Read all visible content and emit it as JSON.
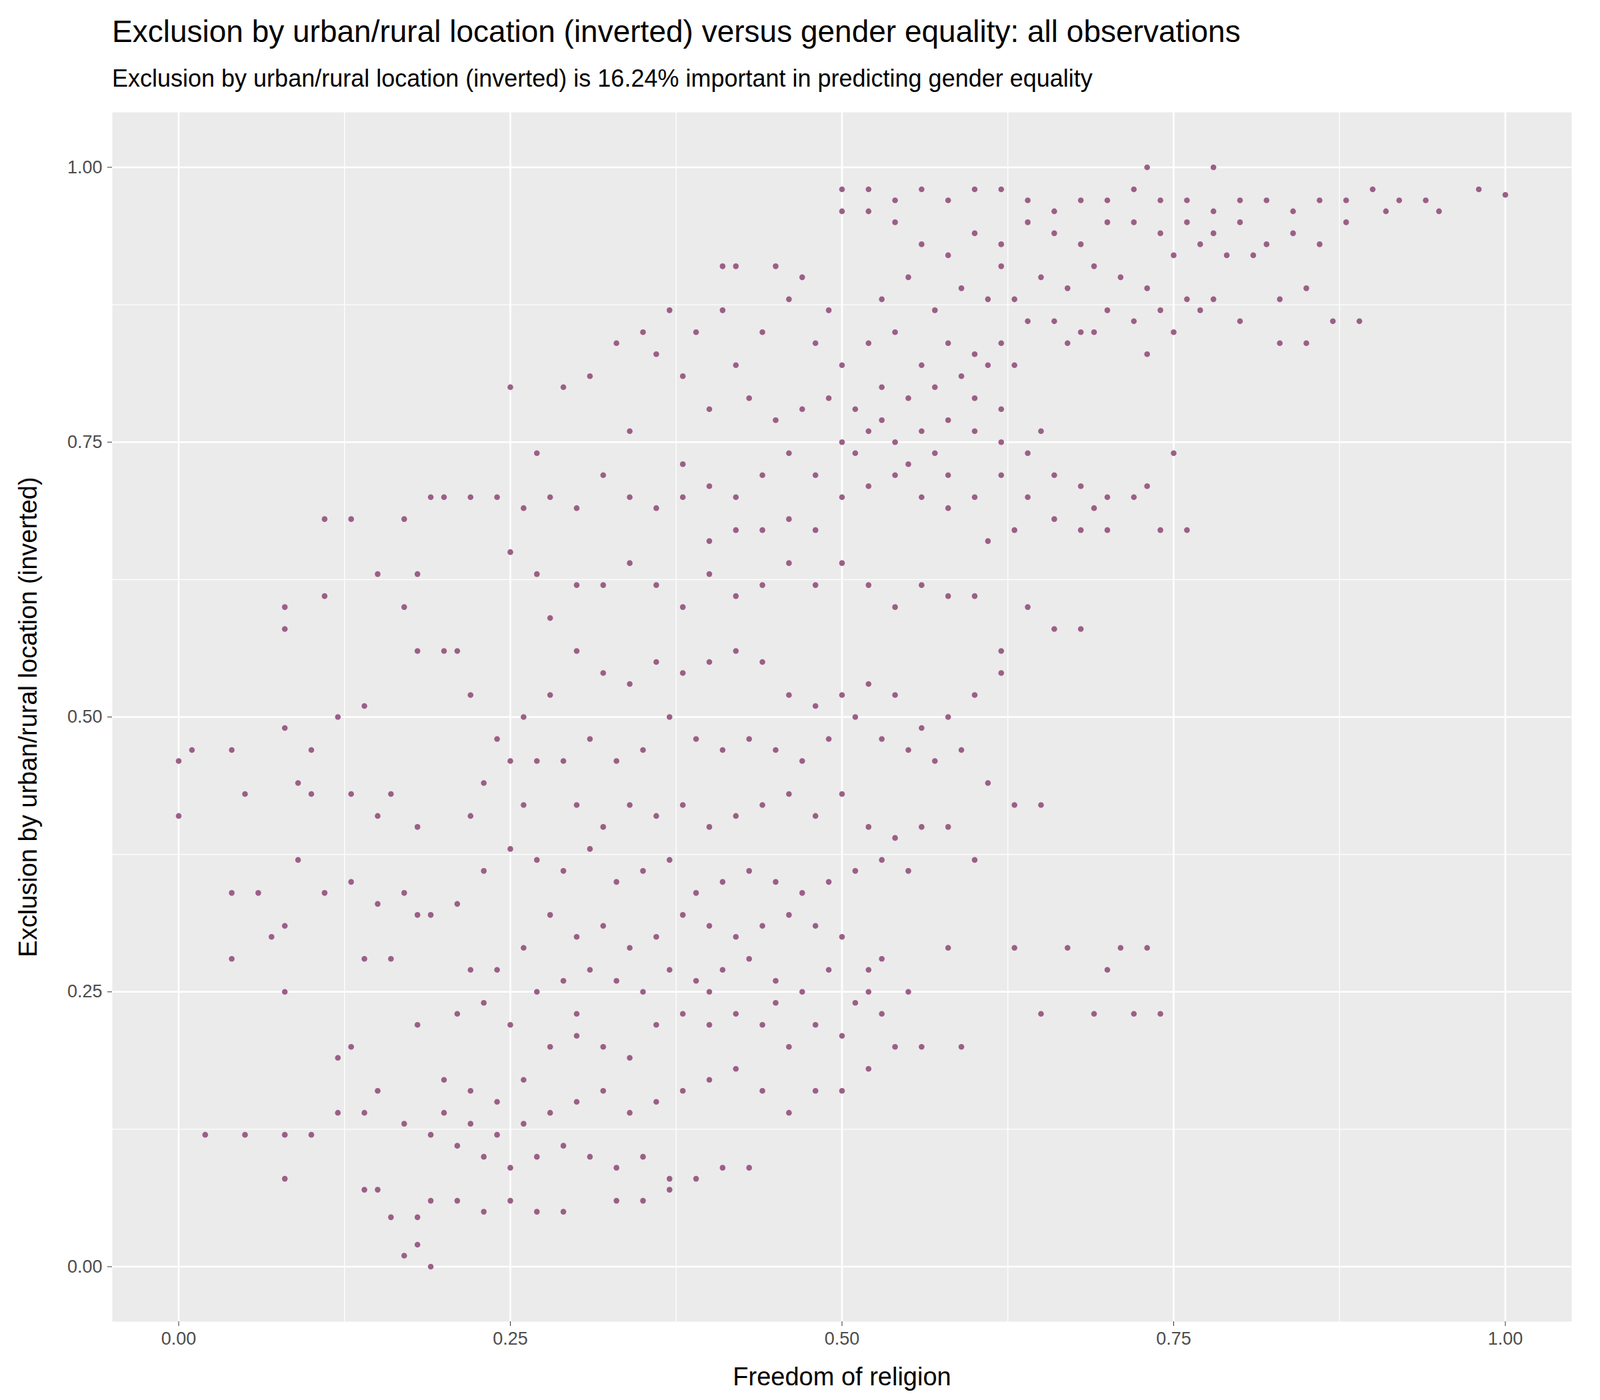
{
  "chart_data": {
    "type": "scatter",
    "title": "Exclusion by urban/rural location (inverted) versus gender equality: all observations",
    "subtitle": "Exclusion by urban/rural location (inverted) is 16.24% important in predicting gender equality",
    "x_label": "Freedom of religion",
    "y_label": "Exclusion by urban/rural location (inverted)",
    "color": "#9b5f87",
    "grid": true,
    "xlim": [
      -0.05,
      1.05
    ],
    "ylim": [
      -0.05,
      1.05
    ],
    "xticks": [
      {
        "value": 0,
        "label": "0.00"
      },
      {
        "value": 0.25,
        "label": "0.25"
      },
      {
        "value": 0.5,
        "label": "0.50"
      },
      {
        "value": 0.75,
        "label": "0.75"
      },
      {
        "value": 1,
        "label": "1.00"
      }
    ],
    "yticks": [
      {
        "value": 0,
        "label": "0.00"
      },
      {
        "value": 0.25,
        "label": "0.25"
      },
      {
        "value": 0.5,
        "label": "0.50"
      },
      {
        "value": 0.75,
        "label": "0.75"
      },
      {
        "value": 1,
        "label": "1.00"
      }
    ],
    "x": [
      0.5,
      0.52,
      0.54,
      0.56,
      0.58,
      0.6,
      0.62,
      0.64,
      0.66,
      0.68,
      0.7,
      0.72,
      0.74,
      0.76,
      0.78,
      0.8,
      0.82,
      0.84,
      0.86,
      0.88,
      0.9,
      0.92,
      0.94,
      0.98,
      1,
      0.73,
      0.78,
      0.7,
      0.72,
      0.74,
      0.76,
      0.78,
      0.8,
      0.82,
      0.84,
      0.68,
      0.66,
      0.64,
      0.62,
      0.6,
      0.58,
      0.56,
      0.54,
      0.52,
      0.5,
      0.75,
      0.77,
      0.79,
      0.81,
      0.86,
      0.88,
      0.91,
      0.95,
      0.69,
      0.71,
      0.73,
      0.67,
      0.65,
      0.63,
      0.61,
      0.59,
      0.57,
      0.55,
      0.62,
      0.7,
      0.72,
      0.74,
      0.76,
      0.78,
      0.8,
      0.83,
      0.85,
      0.87,
      0.89,
      0.83,
      0.85,
      0.75,
      0.68,
      0.66,
      0.64,
      0.62,
      0.6,
      0.58,
      0.56,
      0.54,
      0.52,
      0.5,
      0.48,
      0.46,
      0.44,
      0.42,
      0.41,
      0.45,
      0.47,
      0.49,
      0.53,
      0.57,
      0.59,
      0.61,
      0.63,
      0.67,
      0.69,
      0.73,
      0.77,
      0.5,
      0.51,
      0.52,
      0.53,
      0.54,
      0.55,
      0.56,
      0.57,
      0.58,
      0.6,
      0.62,
      0.64,
      0.66,
      0.68,
      0.7,
      0.72,
      0.74,
      0.76,
      0.7,
      0.68,
      0.66,
      0.64,
      0.62,
      0.6,
      0.58,
      0.56,
      0.54,
      0.52,
      0.5,
      0.48,
      0.46,
      0.45,
      0.47,
      0.49,
      0.51,
      0.53,
      0.55,
      0.43,
      0.44,
      0.42,
      0.4,
      0.38,
      0.36,
      0.34,
      0.32,
      0.3,
      0.28,
      0.26,
      0.24,
      0.22,
      0.2,
      0.38,
      0.35,
      0.37,
      0.39,
      0.41,
      0.33,
      0.31,
      0.29,
      0.25,
      0.27,
      0.34,
      0.4,
      0.42,
      0.38,
      0.36,
      0.61,
      0.63,
      0.6,
      0.62,
      0.58,
      0.65,
      0.69,
      0.73,
      0.75,
      0.48,
      0.46,
      0.44,
      0.42,
      0.4,
      0.11,
      0.13,
      0.17,
      0.19,
      0.15,
      0.11,
      0.08,
      0.08,
      0.3,
      0.32,
      0.34,
      0.36,
      0.38,
      0.4,
      0.42,
      0.44,
      0.46,
      0.48,
      0.5,
      0.52,
      0.54,
      0.56,
      0.58,
      0.6,
      0.62,
      0.64,
      0.66,
      0.68,
      0.62,
      0.6,
      0.58,
      0.56,
      0.54,
      0.52,
      0.5,
      0.48,
      0.46,
      0.44,
      0.42,
      0.4,
      0.38,
      0.36,
      0.34,
      0.32,
      0.3,
      0.28,
      0.26,
      0.24,
      0.22,
      0.2,
      0.28,
      0.27,
      0.25,
      0.37,
      0.39,
      0.41,
      0.43,
      0.45,
      0.47,
      0.49,
      0.51,
      0.53,
      0.55,
      0.57,
      0.59,
      0.61,
      0.63,
      0.65,
      0.35,
      0.33,
      0.31,
      0.29,
      0.27,
      0.25,
      0.23,
      0.21,
      0.18,
      0.12,
      0.14,
      0.1,
      0.08,
      0.09,
      0.01,
      0.04,
      0,
      0,
      0.05,
      0.1,
      0.16,
      0.18,
      0.22,
      0.26,
      0.13,
      0.15,
      0.17,
      0.18,
      0.3,
      0.32,
      0.34,
      0.36,
      0.38,
      0.4,
      0.42,
      0.44,
      0.46,
      0.48,
      0.5,
      0.52,
      0.54,
      0.56,
      0.58,
      0.6,
      0.55,
      0.53,
      0.51,
      0.49,
      0.47,
      0.45,
      0.43,
      0.41,
      0.39,
      0.37,
      0.35,
      0.33,
      0.31,
      0.29,
      0.27,
      0.25,
      0.23,
      0.21,
      0.19,
      0.17,
      0.15,
      0.13,
      0.11,
      0.09,
      0.08,
      0.07,
      0.04,
      0.06,
      0.04,
      0.08,
      0.28,
      0.3,
      0.32,
      0.34,
      0.36,
      0.38,
      0.4,
      0.42,
      0.44,
      0.46,
      0.48,
      0.5,
      0.52,
      0.53,
      0.26,
      0.24,
      0.22,
      0.27,
      0.29,
      0.31,
      0.33,
      0.35,
      0.37,
      0.39,
      0.41,
      0.43,
      0.45,
      0.47,
      0.49,
      0.51,
      0.58,
      0.63,
      0.67,
      0.71,
      0.73,
      0.7,
      0.69,
      0.72,
      0.74,
      0.65,
      0.14,
      0.16,
      0.18,
      0.2,
      0.22,
      0.24,
      0.26,
      0.28,
      0.3,
      0.32,
      0.34,
      0.36,
      0.38,
      0.4,
      0.42,
      0.44,
      0.46,
      0.48,
      0.5,
      0.52,
      0.54,
      0.56,
      0.59,
      0.5,
      0.48,
      0.46,
      0.44,
      0.42,
      0.4,
      0.38,
      0.36,
      0.34,
      0.32,
      0.3,
      0.28,
      0.26,
      0.24,
      0.22,
      0.2,
      0.21,
      0.23,
      0.25,
      0.27,
      0.29,
      0.31,
      0.33,
      0.35,
      0.37,
      0.39,
      0.41,
      0.43,
      0.19,
      0.21,
      0.23,
      0.25,
      0.27,
      0.29,
      0.33,
      0.35,
      0.37,
      0.18,
      0.18,
      0.17,
      0.19,
      0.16,
      0.14,
      0.12,
      0.14,
      0.12,
      0.13,
      0.15,
      0.17,
      0.19,
      0.18,
      0.02,
      0.05,
      0.08,
      0.1,
      0.08,
      0.15,
      0.21,
      0.23,
      0.25,
      0.3,
      0.4,
      0.45,
      0.55,
      0.52,
      0.53
    ],
    "values": [
      0.98,
      0.98,
      0.97,
      0.98,
      0.97,
      0.98,
      0.98,
      0.97,
      0.96,
      0.97,
      0.97,
      0.98,
      0.97,
      0.97,
      0.96,
      0.97,
      0.97,
      0.96,
      0.97,
      0.97,
      0.98,
      0.97,
      0.97,
      0.98,
      0.975,
      1,
      1,
      0.95,
      0.95,
      0.94,
      0.95,
      0.94,
      0.95,
      0.93,
      0.94,
      0.93,
      0.94,
      0.95,
      0.93,
      0.94,
      0.92,
      0.93,
      0.95,
      0.96,
      0.96,
      0.92,
      0.93,
      0.92,
      0.92,
      0.93,
      0.95,
      0.96,
      0.96,
      0.91,
      0.9,
      0.89,
      0.89,
      0.9,
      0.88,
      0.88,
      0.89,
      0.87,
      0.9,
      0.91,
      0.87,
      0.86,
      0.87,
      0.88,
      0.88,
      0.86,
      0.88,
      0.89,
      0.86,
      0.86,
      0.84,
      0.84,
      0.85,
      0.85,
      0.86,
      0.86,
      0.84,
      0.83,
      0.84,
      0.82,
      0.85,
      0.84,
      0.82,
      0.84,
      0.88,
      0.85,
      0.91,
      0.91,
      0.91,
      0.9,
      0.87,
      0.88,
      0.8,
      0.81,
      0.82,
      0.82,
      0.84,
      0.85,
      0.83,
      0.87,
      0.75,
      0.74,
      0.76,
      0.77,
      0.75,
      0.73,
      0.76,
      0.74,
      0.77,
      0.76,
      0.75,
      0.74,
      0.72,
      0.71,
      0.7,
      0.7,
      0.67,
      0.67,
      0.67,
      0.67,
      0.68,
      0.7,
      0.72,
      0.7,
      0.69,
      0.7,
      0.72,
      0.71,
      0.7,
      0.72,
      0.74,
      0.77,
      0.78,
      0.79,
      0.78,
      0.8,
      0.79,
      0.79,
      0.72,
      0.7,
      0.71,
      0.7,
      0.69,
      0.7,
      0.72,
      0.69,
      0.7,
      0.69,
      0.7,
      0.7,
      0.7,
      0.73,
      0.85,
      0.87,
      0.85,
      0.87,
      0.84,
      0.81,
      0.8,
      0.8,
      0.74,
      0.76,
      0.78,
      0.82,
      0.81,
      0.83,
      0.66,
      0.67,
      0.79,
      0.78,
      0.72,
      0.76,
      0.69,
      0.71,
      0.74,
      0.67,
      0.68,
      0.67,
      0.67,
      0.66,
      0.68,
      0.68,
      0.68,
      0.7,
      0.63,
      0.61,
      0.6,
      0.58,
      0.62,
      0.62,
      0.64,
      0.62,
      0.6,
      0.63,
      0.61,
      0.62,
      0.64,
      0.62,
      0.64,
      0.62,
      0.6,
      0.62,
      0.61,
      0.61,
      0.56,
      0.6,
      0.58,
      0.58,
      0.54,
      0.52,
      0.5,
      0.49,
      0.52,
      0.53,
      0.52,
      0.51,
      0.52,
      0.55,
      0.56,
      0.55,
      0.54,
      0.55,
      0.53,
      0.54,
      0.56,
      0.52,
      0.5,
      0.48,
      0.52,
      0.56,
      0.59,
      0.63,
      0.65,
      0.5,
      0.48,
      0.47,
      0.48,
      0.47,
      0.46,
      0.48,
      0.5,
      0.48,
      0.47,
      0.46,
      0.47,
      0.44,
      0.42,
      0.42,
      0.47,
      0.46,
      0.48,
      0.46,
      0.46,
      0.46,
      0.44,
      0.56,
      0.56,
      0.5,
      0.51,
      0.47,
      0.49,
      0.44,
      0.47,
      0.47,
      0.46,
      0.41,
      0.43,
      0.43,
      0.43,
      0.4,
      0.41,
      0.42,
      0.43,
      0.41,
      0.6,
      0.63,
      0.42,
      0.4,
      0.42,
      0.41,
      0.42,
      0.4,
      0.41,
      0.42,
      0.43,
      0.41,
      0.43,
      0.4,
      0.39,
      0.4,
      0.4,
      0.37,
      0.36,
      0.37,
      0.36,
      0.35,
      0.34,
      0.35,
      0.36,
      0.35,
      0.34,
      0.37,
      0.36,
      0.35,
      0.38,
      0.36,
      0.37,
      0.38,
      0.36,
      0.33,
      0.32,
      0.34,
      0.33,
      0.35,
      0.34,
      0.37,
      0.31,
      0.3,
      0.34,
      0.34,
      0.28,
      0.25,
      0.32,
      0.3,
      0.31,
      0.29,
      0.3,
      0.32,
      0.31,
      0.3,
      0.31,
      0.32,
      0.31,
      0.3,
      0.27,
      0.28,
      0.29,
      0.27,
      0.27,
      0.25,
      0.26,
      0.27,
      0.26,
      0.25,
      0.27,
      0.26,
      0.27,
      0.28,
      0.26,
      0.25,
      0.27,
      0.24,
      0.29,
      0.29,
      0.29,
      0.29,
      0.29,
      0.27,
      0.23,
      0.23,
      0.23,
      0.23,
      0.28,
      0.28,
      0.32,
      0.17,
      0.16,
      0.15,
      0.17,
      0.2,
      0.21,
      0.2,
      0.19,
      0.22,
      0.23,
      0.22,
      0.23,
      0.22,
      0.2,
      0.22,
      0.21,
      0.18,
      0.2,
      0.2,
      0.2,
      0.16,
      0.16,
      0.14,
      0.16,
      0.18,
      0.17,
      0.16,
      0.15,
      0.14,
      0.16,
      0.15,
      0.14,
      0.13,
      0.12,
      0.13,
      0.14,
      0.11,
      0.1,
      0.09,
      0.1,
      0.11,
      0.1,
      0.09,
      0.1,
      0.08,
      0.08,
      0.09,
      0.09,
      0.06,
      0.06,
      0.05,
      0.06,
      0.05,
      0.05,
      0.06,
      0.06,
      0.07,
      0.045,
      0.02,
      0.01,
      0,
      0.045,
      0.07,
      0.14,
      0.14,
      0.19,
      0.2,
      0.16,
      0.13,
      0.12,
      0.22,
      0.12,
      0.12,
      0.12,
      0.12,
      0.08,
      0.07,
      0.23,
      0.24,
      0.22,
      0.23,
      0.25,
      0.24,
      0.25,
      0.25,
      0.23
    ]
  }
}
